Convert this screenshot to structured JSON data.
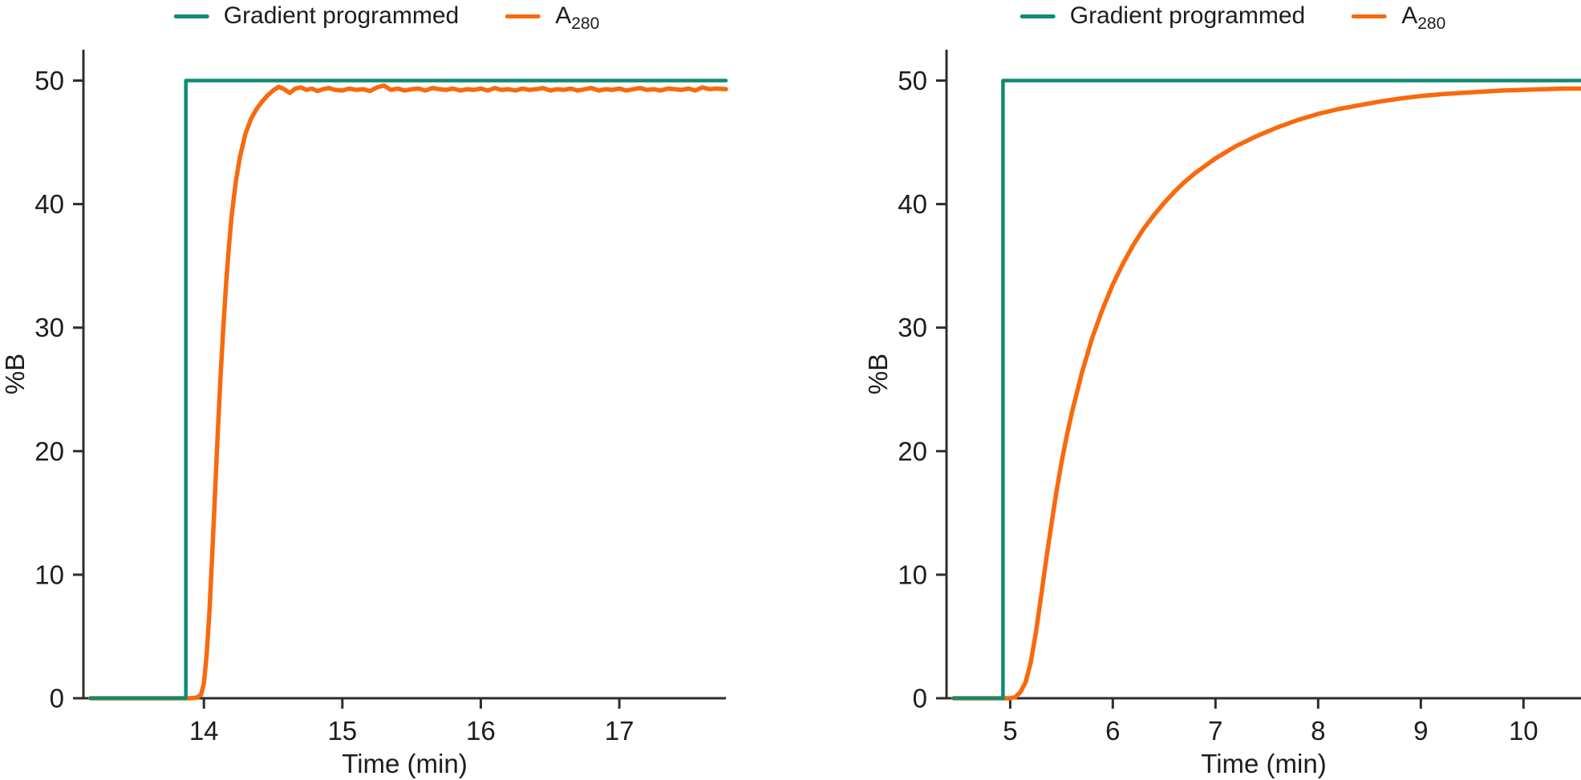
{
  "figure": {
    "background": "#ffffff",
    "colors": {
      "gradient": "#0e8b74",
      "a280": "#f76a0e",
      "axis": "#2d2d2d",
      "text": "#1d1d1d"
    }
  },
  "chart_data": [
    {
      "type": "line",
      "title": "",
      "xlabel": "Time (min)",
      "ylabel": "%B",
      "xlim": [
        13.13,
        17.77
      ],
      "ylim": [
        0,
        52.5
      ],
      "xticks": [
        14,
        15,
        16,
        17
      ],
      "yticks": [
        0,
        10,
        20,
        30,
        40,
        50
      ],
      "grid": false,
      "legend_position": "top-center",
      "legend_items": [
        {
          "label": "Gradient programmed",
          "series": "gradient"
        },
        {
          "label_base": "A",
          "label_sub": "280",
          "series": "a280"
        }
      ],
      "series": [
        {
          "name": "Gradient programmed",
          "key": "gradient",
          "color": "#0e8b74",
          "points": [
            [
              13.18,
              0
            ],
            [
              13.87,
              0
            ],
            [
              13.87,
              50
            ],
            [
              17.77,
              50
            ]
          ]
        },
        {
          "name": "A280",
          "key": "a280",
          "color": "#f76a0e",
          "points": [
            [
              13.18,
              0
            ],
            [
              13.4,
              0
            ],
            [
              13.6,
              0
            ],
            [
              13.8,
              0
            ],
            [
              13.9,
              0
            ],
            [
              13.95,
              0.05
            ],
            [
              13.98,
              0.3
            ],
            [
              14.0,
              1.2
            ],
            [
              14.02,
              3.5
            ],
            [
              14.04,
              7
            ],
            [
              14.06,
              11.5
            ],
            [
              14.08,
              16.5
            ],
            [
              14.1,
              21.5
            ],
            [
              14.12,
              26
            ],
            [
              14.14,
              30
            ],
            [
              14.16,
              33.5
            ],
            [
              14.18,
              36.5
            ],
            [
              14.2,
              39
            ],
            [
              14.23,
              41.8
            ],
            [
              14.26,
              43.8
            ],
            [
              14.3,
              45.7
            ],
            [
              14.34,
              46.9
            ],
            [
              14.38,
              47.7
            ],
            [
              14.42,
              48.3
            ],
            [
              14.46,
              48.8
            ],
            [
              14.5,
              49.2
            ],
            [
              14.54,
              49.5
            ],
            [
              14.58,
              49.3
            ],
            [
              14.62,
              49.0
            ],
            [
              14.66,
              49.35
            ],
            [
              14.7,
              49.45
            ],
            [
              14.74,
              49.25
            ],
            [
              14.78,
              49.35
            ],
            [
              14.82,
              49.15
            ],
            [
              14.86,
              49.3
            ],
            [
              14.9,
              49.4
            ],
            [
              14.95,
              49.25
            ],
            [
              15.0,
              49.2
            ],
            [
              15.05,
              49.35
            ],
            [
              15.1,
              49.25
            ],
            [
              15.15,
              49.3
            ],
            [
              15.2,
              49.15
            ],
            [
              15.25,
              49.45
            ],
            [
              15.3,
              49.6
            ],
            [
              15.35,
              49.25
            ],
            [
              15.4,
              49.35
            ],
            [
              15.45,
              49.2
            ],
            [
              15.5,
              49.3
            ],
            [
              15.55,
              49.35
            ],
            [
              15.6,
              49.2
            ],
            [
              15.65,
              49.4
            ],
            [
              15.7,
              49.3
            ],
            [
              15.75,
              49.25
            ],
            [
              15.8,
              49.35
            ],
            [
              15.85,
              49.2
            ],
            [
              15.9,
              49.3
            ],
            [
              15.95,
              49.25
            ],
            [
              16.0,
              49.35
            ],
            [
              16.05,
              49.2
            ],
            [
              16.1,
              49.4
            ],
            [
              16.15,
              49.25
            ],
            [
              16.2,
              49.3
            ],
            [
              16.25,
              49.2
            ],
            [
              16.3,
              49.35
            ],
            [
              16.35,
              49.25
            ],
            [
              16.4,
              49.3
            ],
            [
              16.45,
              49.4
            ],
            [
              16.5,
              49.2
            ],
            [
              16.55,
              49.3
            ],
            [
              16.6,
              49.25
            ],
            [
              16.65,
              49.35
            ],
            [
              16.7,
              49.2
            ],
            [
              16.75,
              49.3
            ],
            [
              16.8,
              49.4
            ],
            [
              16.85,
              49.2
            ],
            [
              16.9,
              49.3
            ],
            [
              16.95,
              49.25
            ],
            [
              17.0,
              49.35
            ],
            [
              17.05,
              49.2
            ],
            [
              17.1,
              49.3
            ],
            [
              17.15,
              49.4
            ],
            [
              17.2,
              49.25
            ],
            [
              17.25,
              49.3
            ],
            [
              17.3,
              49.2
            ],
            [
              17.35,
              49.35
            ],
            [
              17.4,
              49.3
            ],
            [
              17.45,
              49.25
            ],
            [
              17.5,
              49.35
            ],
            [
              17.55,
              49.2
            ],
            [
              17.6,
              49.45
            ],
            [
              17.65,
              49.3
            ],
            [
              17.7,
              49.35
            ],
            [
              17.77,
              49.3
            ]
          ]
        }
      ]
    },
    {
      "type": "line",
      "title": "",
      "xlabel": "Time (min)",
      "ylabel": "%B",
      "xlim": [
        4.38,
        10.56
      ],
      "ylim": [
        0,
        52.5
      ],
      "xticks": [
        5,
        6,
        7,
        8,
        9,
        10
      ],
      "yticks": [
        0,
        10,
        20,
        30,
        40,
        50
      ],
      "grid": false,
      "legend_position": "top-center",
      "legend_items": [
        {
          "label": "Gradient programmed",
          "series": "gradient"
        },
        {
          "label_base": "A",
          "label_sub": "280",
          "series": "a280"
        }
      ],
      "series": [
        {
          "name": "Gradient programmed",
          "key": "gradient",
          "color": "#0e8b74",
          "points": [
            [
              4.45,
              0
            ],
            [
              4.93,
              0
            ],
            [
              4.93,
              50
            ],
            [
              10.56,
              50
            ]
          ]
        },
        {
          "name": "A280",
          "key": "a280",
          "color": "#f76a0e",
          "points": [
            [
              4.45,
              0
            ],
            [
              4.7,
              0
            ],
            [
              4.93,
              0
            ],
            [
              5.0,
              0
            ],
            [
              5.05,
              0.1
            ],
            [
              5.1,
              0.5
            ],
            [
              5.15,
              1.3
            ],
            [
              5.2,
              2.9
            ],
            [
              5.25,
              5.3
            ],
            [
              5.3,
              8.2
            ],
            [
              5.35,
              11.2
            ],
            [
              5.4,
              14.0
            ],
            [
              5.45,
              16.7
            ],
            [
              5.5,
              19.1
            ],
            [
              5.55,
              21.2
            ],
            [
              5.6,
              23.1
            ],
            [
              5.7,
              26.4
            ],
            [
              5.8,
              29.2
            ],
            [
              5.9,
              31.5
            ],
            [
              6.0,
              33.5
            ],
            [
              6.1,
              35.2
            ],
            [
              6.2,
              36.7
            ],
            [
              6.3,
              38.0
            ],
            [
              6.4,
              39.1
            ],
            [
              6.5,
              40.1
            ],
            [
              6.6,
              41.0
            ],
            [
              6.7,
              41.8
            ],
            [
              6.8,
              42.5
            ],
            [
              6.9,
              43.1
            ],
            [
              7.0,
              43.7
            ],
            [
              7.2,
              44.7
            ],
            [
              7.4,
              45.5
            ],
            [
              7.6,
              46.2
            ],
            [
              7.8,
              46.8
            ],
            [
              8.0,
              47.3
            ],
            [
              8.2,
              47.7
            ],
            [
              8.4,
              48.0
            ],
            [
              8.6,
              48.3
            ],
            [
              8.8,
              48.55
            ],
            [
              9.0,
              48.75
            ],
            [
              9.2,
              48.9
            ],
            [
              9.4,
              49.0
            ],
            [
              9.6,
              49.1
            ],
            [
              9.8,
              49.2
            ],
            [
              10.0,
              49.25
            ],
            [
              10.2,
              49.3
            ],
            [
              10.4,
              49.35
            ],
            [
              10.56,
              49.35
            ]
          ]
        }
      ]
    }
  ]
}
